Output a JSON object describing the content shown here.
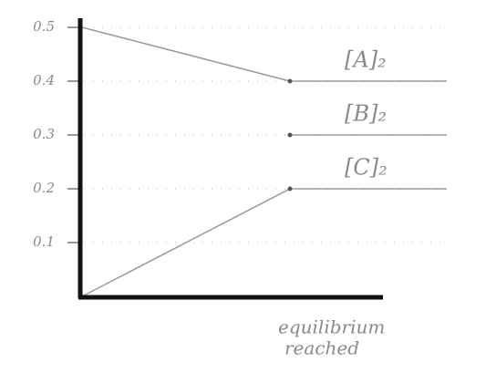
{
  "chart_data": {
    "type": "line",
    "categories": [
      null,
      null,
      null
    ],
    "series": [
      {
        "name": "[A]₂",
        "color": "#9a9a9a",
        "values": [
          0.5,
          0.4,
          0.4
        ]
      },
      {
        "name": "[B]₂",
        "color": "#9a9a9a",
        "values": [
          null,
          0.3,
          0.3
        ]
      },
      {
        "name": "[C]₂",
        "color": "#9a9a9a",
        "values": [
          0,
          0.2,
          0.2
        ]
      }
    ],
    "ylim": [
      0,
      0.5
    ],
    "yticks": [
      0.1,
      0.2,
      0.3,
      0.4,
      0.5
    ],
    "grid": true,
    "annotation": [
      "equilibrium",
      "reached"
    ]
  }
}
